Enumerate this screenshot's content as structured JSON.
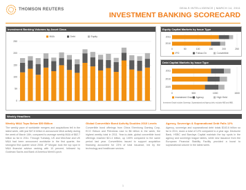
{
  "header": {
    "logo": "THOMSON REUTERS",
    "kicker": "DEALS INTELLIGENCE | MARCH 14, 2011",
    "title": "INVESTMENT BANKING SCORECARD"
  },
  "charts": [
    {
      "type": "stacked-bar",
      "title": "Investment Banking Volumes by Asset Class",
      "ylim": [
        0,
        250
      ],
      "yticks": [
        0,
        50,
        100,
        150,
        200,
        250
      ],
      "series": [
        {
          "name": "M&A",
          "color": "#f29111",
          "values": [
            120,
            135,
            110,
            140,
            125,
            150,
            130,
            118,
            160,
            145,
            128,
            138,
            122,
            170,
            132,
            126,
            140
          ]
        },
        {
          "name": "Debt",
          "color": "#5a5a5a",
          "values": [
            40,
            35,
            45,
            38,
            42,
            30,
            44,
            36,
            40,
            38,
            46,
            34,
            41,
            32,
            39,
            43,
            37
          ]
        },
        {
          "name": "Equity",
          "color": "#b5b5b5",
          "values": [
            20,
            18,
            25,
            22,
            15,
            24,
            19,
            21,
            17,
            23,
            20,
            26,
            18,
            22,
            21,
            19,
            24
          ]
        }
      ]
    },
    {
      "type": "stacked-hbar",
      "title": "Equity Capital Markets by Issue Type",
      "categories": [
        "2011",
        "2010"
      ],
      "xlim": [
        0,
        250
      ],
      "xticks": [
        0,
        50,
        100,
        150,
        200,
        250
      ],
      "series": [
        {
          "name": "IPO",
          "color": "#f29111",
          "values": [
            180,
            150
          ]
        },
        {
          "name": "Follow-On",
          "color": "#5a5a5a",
          "values": [
            40,
            35
          ]
        },
        {
          "name": "Convertible",
          "color": "#b5b5b5",
          "values": [
            15,
            20
          ]
        }
      ]
    },
    {
      "type": "stacked-hbar",
      "title": "Debt Capital Markets by Issue Type",
      "categories": [
        "2011",
        "2010",
        "2009"
      ],
      "xlim": [
        0,
        1500
      ],
      "xticks": [
        0,
        500,
        1000,
        1500
      ],
      "series": [
        {
          "name": "Investment Grade",
          "color": "#f29111",
          "values": [
            900,
            820,
            760
          ]
        },
        {
          "name": "Agency",
          "color": "#5a5a5a",
          "values": [
            300,
            280,
            310
          ]
        },
        {
          "name": "High Yield",
          "color": "#b5b5b5",
          "values": [
            150,
            170,
            140
          ]
        }
      ],
      "note": "Investment Grade includes Sovereign, Supranational and Agency debt; excludes ABS and MBS."
    }
  ],
  "headlines_title": "Weekly Headlines",
  "articles": [
    {
      "headline": "Weekly M&A Tops Below $50 Billion",
      "body": "The weekly pace of worldwide mergers and acquisitions fell in the latest week, with just $47.6 billion in announced M&A activity during the week of March 14th, compared to average weekly M&A of $62.7 billion so far in 2011. Through Tuesday, US and Mid-East and UK M&A had been announced worldwide in the first quarter, the strongest first quarter since 2008. JP Morgan took the top spot in M&A financial advisor ranking with 10 percent, followed by Goldman Sachs and Bank of America Merrill Lynch."
    },
    {
      "headline": "Global Convertible Bond Activity Doubles 2010 Levels",
      "body": "Convertible bond offerings from China Shenhong Gaming Corp, ECO Edison and Petrobras rose to $6 billion in the week, the highest weekly total in 2011. Year-to-date, global convertible bond offerings reached $21.4 billion, up 105% compared to the same period last year. Convertibles issued to support acquisition financing accounted for 23% of total issuance, led by the technology and healthcare sectors."
    },
    {
      "headline": "Agency, Sovereign & Supranational Debt Falls 12%",
      "body": "Agency, sovereign and supranational debt totals $163.6 billion so far in 2011, down a total of 12% compared to a year ago. Deutsche Bank, HSBC and Barclays Capital maintain the top spots in the agency and sovereign league tables, while new issuance from the European Financial Stability Facility provided a boost to supranational volume in the latest week."
    }
  ],
  "page_number": "1"
}
